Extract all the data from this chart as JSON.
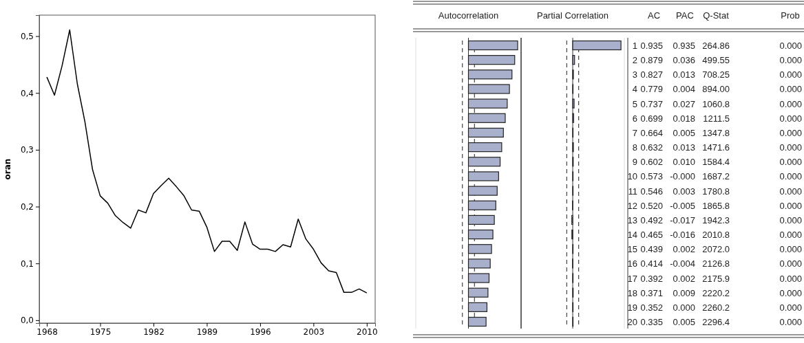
{
  "chart_data": [
    {
      "type": "line",
      "ylabel": "oran",
      "x": [
        1968,
        1969,
        1970,
        1971,
        1972,
        1973,
        1974,
        1975,
        1976,
        1977,
        1978,
        1979,
        1980,
        1981,
        1982,
        1983,
        1984,
        1985,
        1986,
        1987,
        1988,
        1989,
        1990,
        1991,
        1992,
        1993,
        1994,
        1995,
        1996,
        1997,
        1998,
        1999,
        2000,
        2001,
        2002,
        2003,
        2004,
        2005,
        2006,
        2007,
        2008,
        2009,
        2010
      ],
      "series": [
        {
          "color": "#000000",
          "values": [
            0.428,
            0.396,
            0.448,
            0.511,
            0.416,
            0.349,
            0.265,
            0.219,
            0.206,
            0.184,
            0.172,
            0.162,
            0.194,
            0.189,
            0.223,
            0.237,
            0.25,
            0.235,
            0.219,
            0.194,
            0.192,
            0.164,
            0.121,
            0.139,
            0.139,
            0.123,
            0.173,
            0.134,
            0.125,
            0.125,
            0.121,
            0.133,
            0.129,
            0.178,
            0.143,
            0.125,
            0.101,
            0.087,
            0.084,
            0.049,
            0.049,
            0.055,
            0.048
          ]
        }
      ],
      "xlim": [
        1967,
        2011.1
      ],
      "xticks": [
        1968,
        1975,
        1982,
        1989,
        1996,
        2003,
        2010
      ],
      "ylim": [
        -0.005,
        0.537
      ],
      "yticks": [
        {
          "value": 0,
          "label": "0,0"
        },
        {
          "value": 0.1,
          "label": "0,1"
        },
        {
          "value": 0.2,
          "label": "0,2"
        },
        {
          "value": 0.3,
          "label": "0,3"
        },
        {
          "value": 0.4,
          "label": "0,4"
        },
        {
          "value": 0.5,
          "label": "0,5"
        }
      ]
    },
    {
      "type": "bar",
      "orientation": "horizontal",
      "title": "Autocorrelation",
      "xlabel": "AC",
      "categories": [
        "1",
        "2",
        "3",
        "4",
        "5",
        "6",
        "7",
        "8",
        "9",
        "10",
        "11",
        "12",
        "13",
        "14",
        "15",
        "16",
        "17",
        "18",
        "19",
        "20"
      ],
      "values": [
        0.935,
        0.879,
        0.827,
        0.779,
        0.737,
        0.699,
        0.664,
        0.632,
        0.602,
        0.573,
        0.546,
        0.52,
        0.492,
        0.465,
        0.439,
        0.414,
        0.392,
        0.371,
        0.352,
        0.335
      ],
      "value_labels": [
        "0.935",
        "0.879",
        "0.827",
        "0.779",
        "0.737",
        "0.699",
        "0.664",
        "0.632",
        "0.602",
        "0.573",
        "0.546",
        "0.520",
        "0.492",
        "0.465",
        "0.439",
        "0.414",
        "0.392",
        "0.371",
        "0.352",
        "0.335"
      ],
      "color": "#a9b0cc",
      "xlim": [
        -1,
        1
      ],
      "ref_lines": [
        {
          "axis": "x",
          "value": -0.115,
          "line_style": "dashed"
        },
        {
          "axis": "x",
          "value": 0.115,
          "line_style": "dashed"
        }
      ]
    },
    {
      "type": "bar",
      "orientation": "horizontal",
      "title": "Partial Correlation",
      "xlabel": "PAC",
      "categories": [
        null,
        null,
        null,
        null,
        null,
        null,
        null,
        null,
        null,
        null,
        null,
        null,
        null,
        null,
        null,
        null,
        null,
        null,
        null,
        null
      ],
      "values": [
        0.935,
        0.036,
        0.013,
        0.004,
        0.027,
        0.018,
        0.005,
        0.013,
        0.01,
        0,
        0.003,
        -0.005,
        -0.017,
        -0.016,
        0.002,
        -0.004,
        0.002,
        0.009,
        0,
        0.005
      ],
      "value_labels": [
        "0.935",
        "0.036",
        "0.013",
        "0.004",
        "0.027",
        "0.018",
        "0.005",
        "0.013",
        "0.010",
        "-0.000",
        "0.003",
        "-0.005",
        "-0.017",
        "-0.016",
        "0.002",
        "-0.004",
        "0.002",
        "0.009",
        "0.000",
        "0.005"
      ],
      "color": "#a9b0cc",
      "xlim": [
        -1,
        1
      ],
      "ref_lines": [
        {
          "axis": "x",
          "value": -0.115,
          "line_style": "dashed"
        },
        {
          "axis": "x",
          "value": 0.115,
          "line_style": "dashed"
        }
      ]
    },
    {
      "type": "other",
      "annotations": [
        "Q-Stat",
        "264.86",
        "499.55",
        "708.25",
        "894.00",
        "1060.8",
        "1211.5",
        "1347.8",
        "1471.6",
        "1584.4",
        "1687.2",
        "1780.8",
        "1865.8",
        "1942.3",
        "2010.8",
        "2072.0",
        "2126.8",
        "2175.9",
        "2220.2",
        "2260.2",
        "2296.4",
        "Prob",
        "0.000",
        "0.000",
        "0.000",
        "0.000",
        "0.000",
        "0.000",
        "0.000",
        "0.000",
        "0.000",
        "0.000",
        "0.000",
        "0.000",
        "0.000",
        "0.000",
        "0.000",
        "0.000",
        "0.000",
        "0.000",
        "0.000",
        "0.000"
      ]
    }
  ]
}
